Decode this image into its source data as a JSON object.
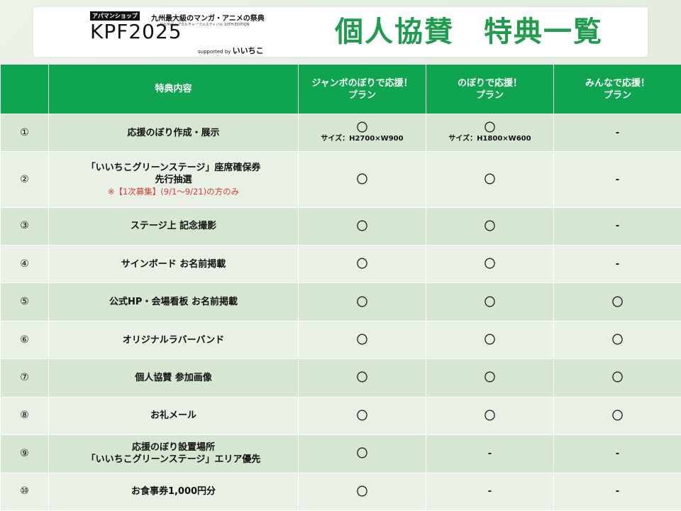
{
  "header": {
    "shop_badge": "アパマンショップ",
    "tagline": "九州最大級のマンガ・アニメの祭典",
    "brand": "KPF2025",
    "subline": "北九州ポップカルチャーフェスティバル 10TH EDITION",
    "supported_by": "supported by",
    "sponsor": "いいちこ",
    "title": "個人協賛　特典一覧"
  },
  "colors": {
    "title_green": "#1f9c4d",
    "header_green": "#0fa550",
    "row_dark": "#d7e5d3",
    "row_light": "#e9f1e6",
    "note_red": "#d23a3a"
  },
  "table": {
    "columns": [
      "",
      "特典内容",
      "ジャンボのぼりで応援！\nプラン",
      "のぼりで応援！\nプラン",
      "みんなで応援！\nプラン"
    ],
    "col_line1": [
      "",
      "特典内容",
      "ジャンボのぼりで応援！",
      "のぼりで応援！",
      "みんなで応援！"
    ],
    "col_line2": [
      "",
      "",
      "プラン",
      "プラン",
      "プラン"
    ],
    "rows": [
      {
        "num": "①",
        "content": [
          "応援のぼり作成・展示"
        ],
        "note": "",
        "c1": "〇",
        "c1_size": "サイズ：H2700×W900",
        "c2": "〇",
        "c2_size": "サイズ：H1800×W600",
        "c3": "-"
      },
      {
        "num": "②",
        "content": [
          "「いいちこグリーンステージ」座席確保券",
          "先行抽選"
        ],
        "note": "※【1次募集】(9/1～9/21)の方のみ",
        "c1": "〇",
        "c1_size": "",
        "c2": "〇",
        "c2_size": "",
        "c3": "-"
      },
      {
        "num": "③",
        "content": [
          "ステージ上 記念撮影"
        ],
        "note": "",
        "c1": "〇",
        "c1_size": "",
        "c2": "〇",
        "c2_size": "",
        "c3": "-"
      },
      {
        "num": "④",
        "content": [
          "サインボード お名前掲載"
        ],
        "note": "",
        "c1": "〇",
        "c1_size": "",
        "c2": "〇",
        "c2_size": "",
        "c3": "-"
      },
      {
        "num": "⑤",
        "content": [
          "公式HP・会場看板 お名前掲載"
        ],
        "note": "",
        "c1": "〇",
        "c1_size": "",
        "c2": "〇",
        "c2_size": "",
        "c3": "〇"
      },
      {
        "num": "⑥",
        "content": [
          "オリジナルラバーバンド"
        ],
        "note": "",
        "c1": "〇",
        "c1_size": "",
        "c2": "〇",
        "c2_size": "",
        "c3": "〇"
      },
      {
        "num": "⑦",
        "content": [
          "個人協賛 参加画像"
        ],
        "note": "",
        "c1": "〇",
        "c1_size": "",
        "c2": "〇",
        "c2_size": "",
        "c3": "〇"
      },
      {
        "num": "⑧",
        "content": [
          "お礼メール"
        ],
        "note": "",
        "c1": "〇",
        "c1_size": "",
        "c2": "〇",
        "c2_size": "",
        "c3": "〇"
      },
      {
        "num": "⑨",
        "content": [
          "応援のぼり設置場所",
          "「いいちこグリーンステージ」エリア優先"
        ],
        "note": "",
        "c1": "〇",
        "c1_size": "",
        "c2": "-",
        "c2_size": "",
        "c3": "-"
      },
      {
        "num": "⑩",
        "content": [
          "お食事券1,000円分"
        ],
        "note": "",
        "c1": "〇",
        "c1_size": "",
        "c2": "-",
        "c2_size": "",
        "c3": "-"
      }
    ]
  }
}
